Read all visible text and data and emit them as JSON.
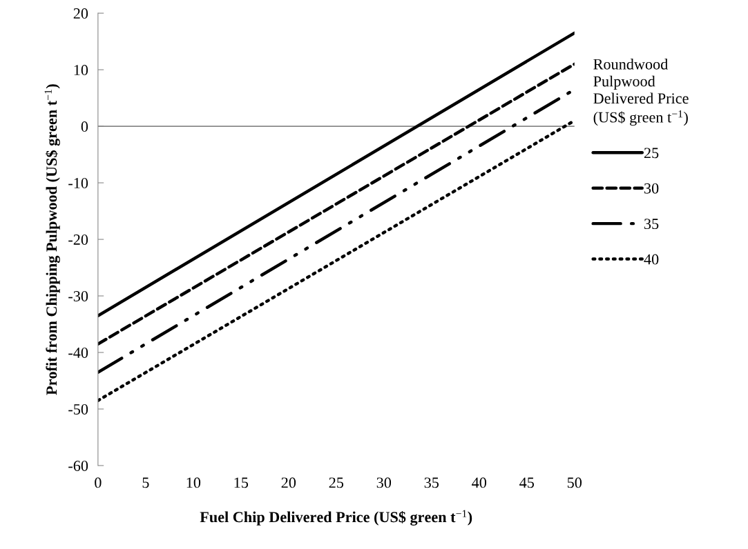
{
  "chart_data": {
    "type": "line",
    "xlabel": "Fuel Chip Delivered Price (US$ green t$^{−1}$)",
    "ylabel": "Profit from Chipping Pulpwood (US$ green t$^{−1}$)",
    "legend_title": "Roundwood\nPulpwood\nDelivered Price\n(US$ green t$^{−1}$)",
    "x": [
      0,
      50
    ],
    "series": [
      {
        "name": "25",
        "color": "#000000",
        "line_style": "solid",
        "values": [
          -33.5,
          16.5
        ]
      },
      {
        "name": "30",
        "color": "#000000",
        "line_style": "dashed",
        "values": [
          -38.5,
          11
        ]
      },
      {
        "name": "35",
        "color": "#000000",
        "line_style": "dashdotdot",
        "values": [
          -43.5,
          6.5
        ]
      },
      {
        "name": "40",
        "color": "#000000",
        "line_style": "dotted",
        "values": [
          -48.5,
          1
        ]
      }
    ],
    "xlim": [
      0,
      50
    ],
    "xticks": [
      0,
      5,
      10,
      15,
      20,
      25,
      30,
      35,
      40,
      45,
      50
    ],
    "ylim": [
      -60,
      20
    ],
    "yticks": [
      -60,
      -50,
      -40,
      -30,
      -20,
      -10,
      0,
      10,
      20
    ],
    "ref_lines": [
      {
        "axis": "y",
        "value": 0,
        "color": "#888888"
      }
    ],
    "grid": false,
    "legend": "right",
    "marker": "none"
  }
}
